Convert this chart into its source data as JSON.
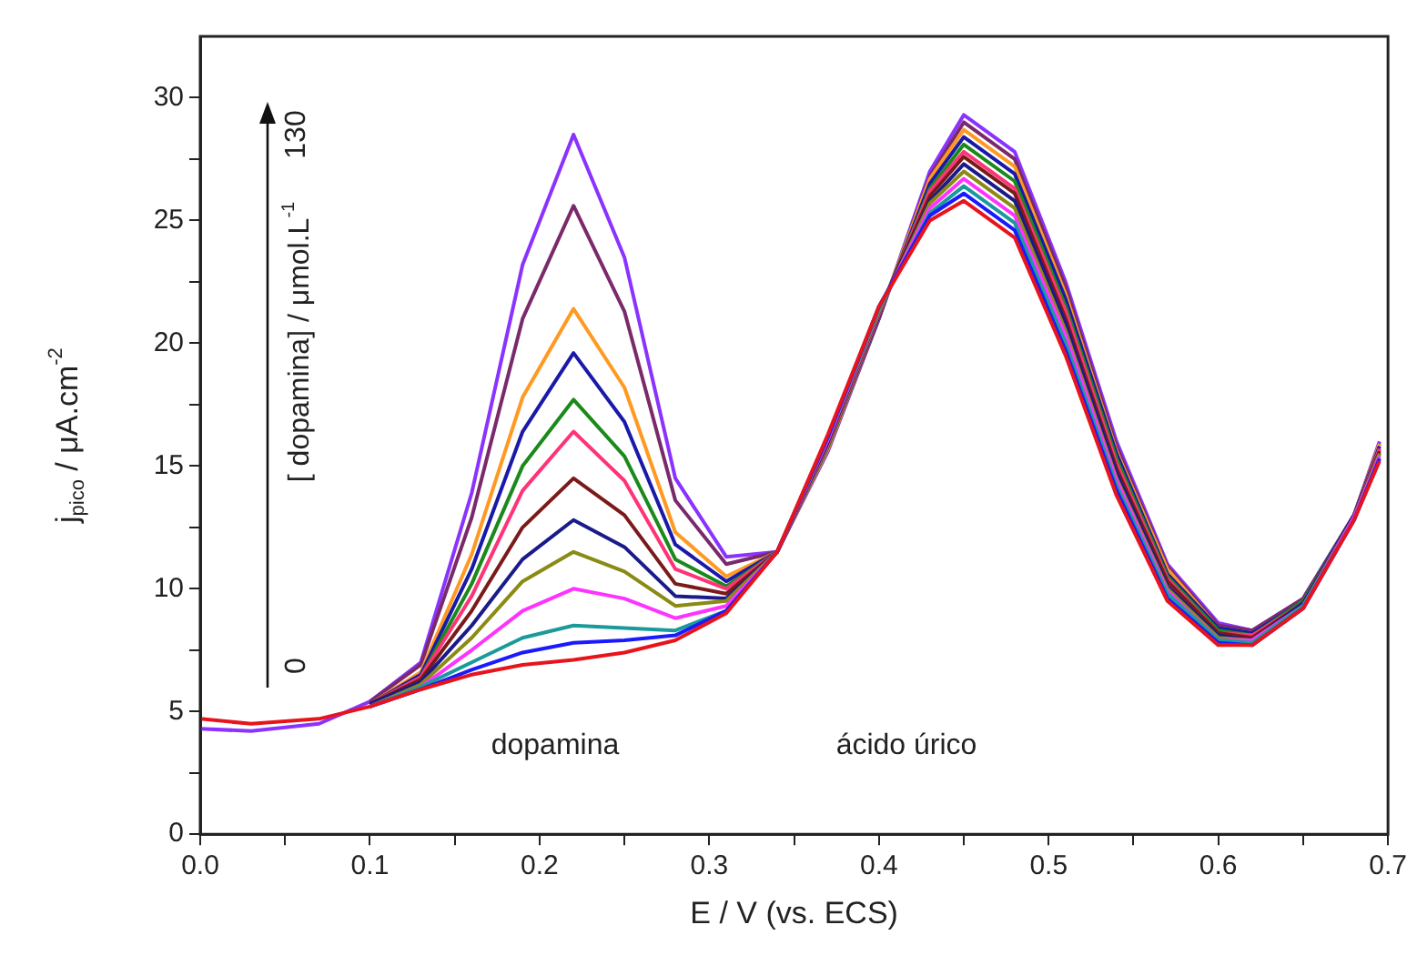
{
  "chart_data": {
    "type": "line",
    "xlabel": "E / V (vs. ECS)",
    "ylabel": "j$_{pico}$ / μA.cm$^{-2}$",
    "x": [
      0,
      0.03,
      0.07,
      0.1,
      0.13,
      0.16,
      0.19,
      0.22,
      0.25,
      0.28,
      0.31,
      0.34,
      0.37,
      0.4,
      0.43,
      0.45,
      0.48,
      0.51,
      0.54,
      0.57,
      0.6,
      0.62,
      0.65,
      0.68,
      0.695
    ],
    "series": [
      {
        "color": "#e8141c",
        "values": [
          4.7,
          4.5,
          4.7,
          5.2,
          5.9,
          6.5,
          6.9,
          7.1,
          7.4,
          7.9,
          9.0,
          11.5,
          16.3,
          21.5,
          25.0,
          25.8,
          24.3,
          19.5,
          13.8,
          9.5,
          7.7,
          7.7,
          9.2,
          12.8,
          15.2
        ]
      },
      {
        "color": "#1a1aff",
        "values": [
          null,
          null,
          null,
          5.2,
          5.9,
          6.7,
          7.4,
          7.8,
          7.9,
          8.1,
          9.1,
          11.5,
          16.2,
          21.5,
          25.2,
          26.1,
          24.6,
          19.7,
          14.0,
          9.6,
          7.8,
          7.7,
          9.2,
          12.8,
          15.3
        ]
      },
      {
        "color": "#1a9a9a",
        "values": [
          null,
          null,
          null,
          5.2,
          6.0,
          7.0,
          8.0,
          8.5,
          8.4,
          8.3,
          9.1,
          11.5,
          16.2,
          21.4,
          25.3,
          26.4,
          24.9,
          20.0,
          14.2,
          9.8,
          7.9,
          7.8,
          9.3,
          12.8,
          15.3
        ]
      },
      {
        "color": "#ff33ff",
        "values": [
          null,
          null,
          null,
          5.2,
          6.0,
          7.5,
          9.1,
          10.0,
          9.6,
          8.8,
          9.3,
          11.5,
          16.1,
          21.4,
          25.5,
          26.7,
          25.2,
          20.3,
          14.4,
          9.9,
          7.9,
          7.9,
          9.3,
          12.9,
          15.4
        ]
      },
      {
        "color": "#8a8a14",
        "values": [
          null,
          null,
          null,
          5.2,
          6.1,
          8.0,
          10.3,
          11.5,
          10.7,
          9.3,
          9.5,
          11.5,
          16.1,
          21.3,
          25.7,
          27.0,
          25.5,
          20.5,
          14.5,
          10.0,
          8.0,
          7.9,
          9.3,
          12.9,
          15.5
        ]
      },
      {
        "color": "#1a1a8a",
        "values": [
          null,
          null,
          null,
          5.3,
          6.2,
          8.5,
          11.2,
          12.8,
          11.7,
          9.7,
          9.6,
          11.5,
          16.0,
          21.3,
          25.8,
          27.3,
          25.8,
          20.8,
          14.7,
          10.1,
          8.1,
          7.9,
          9.4,
          12.9,
          15.5
        ]
      },
      {
        "color": "#7a1a1a",
        "values": [
          null,
          null,
          null,
          5.3,
          6.3,
          9.1,
          12.5,
          14.5,
          13.0,
          10.2,
          9.8,
          11.5,
          16.0,
          21.3,
          26.0,
          27.6,
          26.1,
          21.0,
          14.9,
          10.3,
          8.2,
          8.0,
          9.4,
          12.9,
          15.6
        ]
      },
      {
        "color": "#ff3377",
        "values": [
          null,
          null,
          null,
          5.3,
          6.4,
          9.7,
          14.0,
          16.4,
          14.4,
          10.8,
          10.0,
          11.5,
          15.9,
          21.2,
          26.2,
          27.8,
          26.3,
          21.3,
          15.1,
          10.4,
          8.2,
          8.1,
          9.4,
          12.9,
          15.7
        ]
      },
      {
        "color": "#1a8a1a",
        "values": [
          null,
          null,
          null,
          5.3,
          6.4,
          10.2,
          15.0,
          17.7,
          15.4,
          11.2,
          10.1,
          11.5,
          15.8,
          21.2,
          26.3,
          28.1,
          26.6,
          21.5,
          15.3,
          10.5,
          8.3,
          8.1,
          9.5,
          12.9,
          15.7
        ]
      },
      {
        "color": "#1a1aaa",
        "values": [
          null,
          null,
          null,
          5.3,
          6.5,
          10.8,
          16.4,
          19.6,
          16.8,
          11.8,
          10.3,
          11.5,
          15.8,
          21.1,
          26.5,
          28.4,
          26.9,
          21.8,
          15.5,
          10.6,
          8.4,
          8.2,
          9.5,
          13.0,
          15.8
        ]
      },
      {
        "color": "#ff9922",
        "values": [
          null,
          null,
          null,
          5.3,
          6.6,
          11.4,
          17.8,
          21.4,
          18.2,
          12.3,
          10.5,
          11.5,
          15.7,
          21.1,
          26.7,
          28.7,
          27.2,
          22.0,
          15.6,
          10.8,
          8.4,
          8.2,
          9.5,
          13.0,
          15.9
        ]
      },
      {
        "color": "#7a2a6a",
        "values": [
          null,
          null,
          null,
          5.4,
          6.9,
          12.9,
          21.0,
          25.6,
          21.3,
          13.6,
          11.0,
          11.5,
          15.7,
          21.0,
          26.8,
          29.0,
          27.5,
          22.3,
          15.8,
          10.9,
          8.5,
          8.3,
          9.6,
          13.0,
          15.9
        ]
      },
      {
        "color": "#8a33ff",
        "values": [
          4.3,
          4.2,
          4.5,
          5.4,
          7.0,
          13.9,
          23.2,
          28.5,
          23.5,
          14.5,
          11.3,
          11.5,
          15.6,
          21.0,
          27.0,
          29.3,
          27.8,
          22.5,
          16.0,
          11.0,
          8.6,
          8.3,
          9.6,
          13.0,
          16.0
        ]
      }
    ],
    "xlim": [
      0,
      0.7
    ],
    "xticks": [
      {
        "value": 0,
        "label": "0.0"
      },
      {
        "value": 0.05,
        "label": null
      },
      {
        "value": 0.1,
        "label": "0.1"
      },
      {
        "value": 0.15,
        "label": null
      },
      {
        "value": 0.2,
        "label": "0.2"
      },
      {
        "value": 0.25,
        "label": null
      },
      {
        "value": 0.3,
        "label": "0.3"
      },
      {
        "value": 0.35,
        "label": null
      },
      {
        "value": 0.4,
        "label": "0.4"
      },
      {
        "value": 0.45,
        "label": null
      },
      {
        "value": 0.5,
        "label": "0.5"
      },
      {
        "value": 0.55,
        "label": null
      },
      {
        "value": 0.6,
        "label": "0.6"
      },
      {
        "value": 0.65,
        "label": null
      },
      {
        "value": 0.7,
        "label": "0.7"
      }
    ],
    "ylim": [
      0,
      32.5
    ],
    "yticks": [
      0,
      {
        "value": 2.5,
        "label": null
      },
      5,
      {
        "value": 7.5,
        "label": null
      },
      10,
      {
        "value": 12.5,
        "label": null
      },
      15,
      {
        "value": 17.5,
        "label": null
      },
      20,
      {
        "value": 22.5,
        "label": null
      },
      25,
      {
        "value": 27.5,
        "label": null
      },
      30
    ],
    "annotations": [
      "dopamina",
      "ácido úrico",
      "[ dopamina] / μmol.L$^{-1}$",
      "0",
      "130"
    ],
    "grid": false,
    "legend": false,
    "marker": "none",
    "line_style": "solid"
  }
}
